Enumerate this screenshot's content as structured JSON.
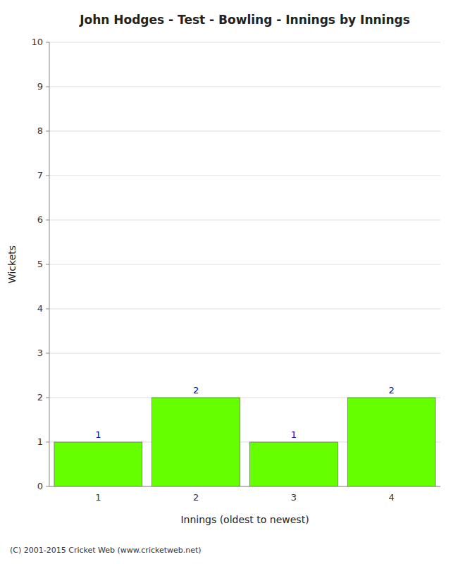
{
  "chart_data": {
    "type": "bar",
    "title": "John Hodges - Test - Bowling - Innings by Innings",
    "xlabel": "Innings (oldest to newest)",
    "ylabel": "Wickets",
    "categories": [
      1,
      2,
      3,
      4
    ],
    "values": [
      1,
      2,
      1,
      2
    ],
    "color": "#66ff00",
    "ylim": [
      0,
      10
    ],
    "yticks": [
      0,
      1,
      2,
      3,
      4,
      5,
      6,
      7,
      8,
      9,
      10
    ],
    "grid": true,
    "data_labels": true,
    "footer": "(C) 2001-2015 Cricket Web (www.cricketweb.net)"
  }
}
